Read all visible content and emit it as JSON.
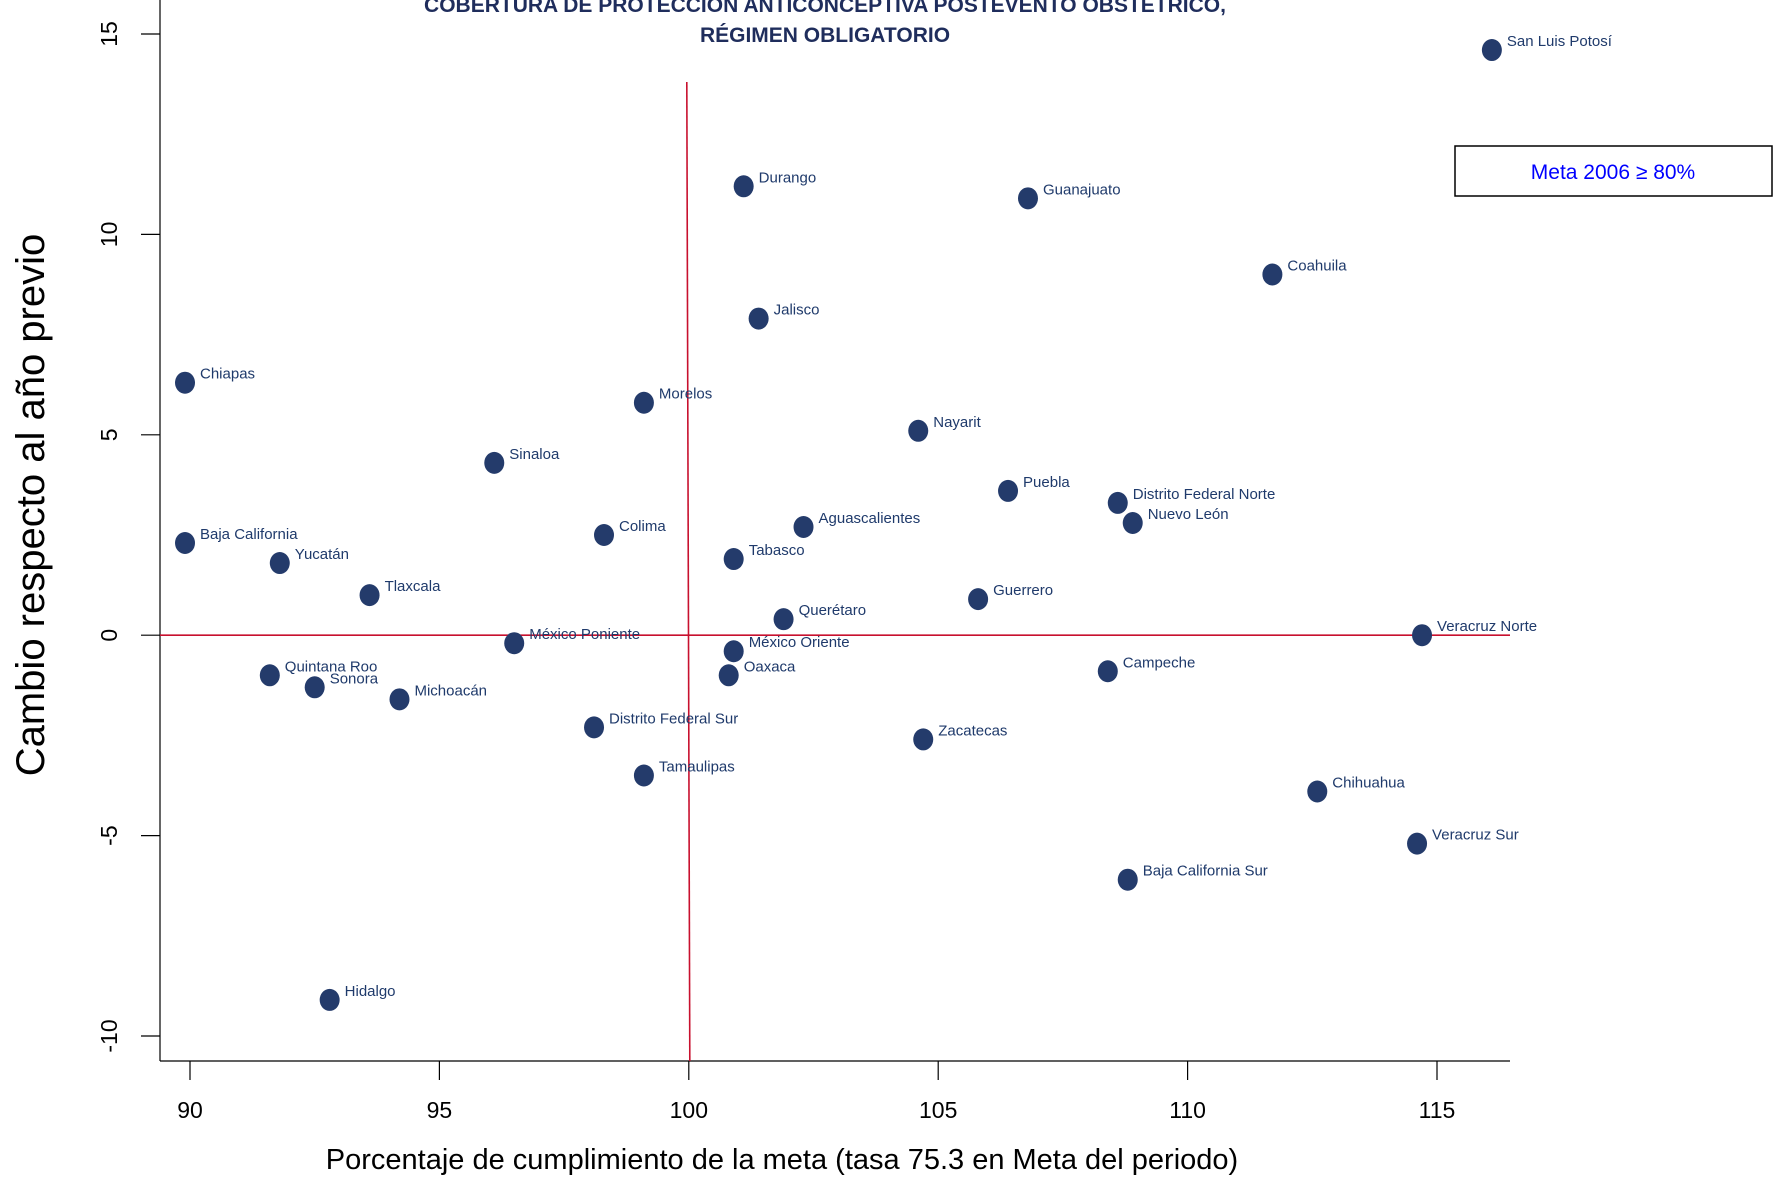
{
  "chart_data": {
    "type": "scatter",
    "title_line1": "COBERTURA DE PROTECCIÓN ANTICONCEPTIVA POSTEVENTO OBSTÉTRICO,",
    "title_line2": "RÉGIMEN OBLIGATORIO",
    "xlabel": "Porcentaje de cumplimiento de la  meta (tasa 75.3 en Meta del periodo)",
    "ylabel": "Cambio respecto al  año previo",
    "xlim": [
      89.5,
      116.6
    ],
    "ylim": [
      -10.7,
      15.6
    ],
    "xticks": [
      "90",
      "95",
      "100",
      "105",
      "110",
      "115"
    ],
    "yticks": [
      "-10",
      "-5",
      "0",
      "5",
      "10",
      "15"
    ],
    "reference_lines": {
      "x": 100,
      "y": 0,
      "color": "#c8102e"
    },
    "legend_text": "Meta 2006 ≥ 80%",
    "legend_color": "#0000ff",
    "marker_color": "#243b6b",
    "grid": false,
    "points": [
      {
        "label": "San Luis Potosí",
        "x": 116.1,
        "y": 14.6
      },
      {
        "label": "Durango",
        "x": 101.1,
        "y": 11.2
      },
      {
        "label": "Guanajuato",
        "x": 106.8,
        "y": 10.9
      },
      {
        "label": "Coahuila",
        "x": 111.7,
        "y": 9.0
      },
      {
        "label": "Jalisco",
        "x": 101.4,
        "y": 7.9
      },
      {
        "label": "Chiapas",
        "x": 89.9,
        "y": 6.3
      },
      {
        "label": "Morelos",
        "x": 99.1,
        "y": 5.8
      },
      {
        "label": "Nayarit",
        "x": 104.6,
        "y": 5.1
      },
      {
        "label": "Sinaloa",
        "x": 96.1,
        "y": 4.3
      },
      {
        "label": "Puebla",
        "x": 106.4,
        "y": 3.6
      },
      {
        "label": "Distrito Federal Norte",
        "x": 108.6,
        "y": 3.3
      },
      {
        "label": "Nuevo León",
        "x": 108.9,
        "y": 2.8
      },
      {
        "label": "Aguascalientes",
        "x": 102.3,
        "y": 2.7
      },
      {
        "label": "Colima",
        "x": 98.3,
        "y": 2.5
      },
      {
        "label": "Baja California",
        "x": 89.9,
        "y": 2.3
      },
      {
        "label": "Tabasco",
        "x": 100.9,
        "y": 1.9
      },
      {
        "label": "Yucatán",
        "x": 91.8,
        "y": 1.8
      },
      {
        "label": "Tlaxcala",
        "x": 93.6,
        "y": 1.0
      },
      {
        "label": "Guerrero",
        "x": 105.8,
        "y": 0.9
      },
      {
        "label": "Querétaro",
        "x": 101.9,
        "y": 0.4
      },
      {
        "label": "Veracruz Norte",
        "x": 114.7,
        "y": 0.0
      },
      {
        "label": "México Poniente",
        "x": 96.5,
        "y": -0.2
      },
      {
        "label": "México Oriente",
        "x": 100.9,
        "y": -0.4
      },
      {
        "label": "Campeche",
        "x": 108.4,
        "y": -0.9
      },
      {
        "label": "Quintana Roo",
        "x": 91.6,
        "y": -1.0
      },
      {
        "label": "Oaxaca",
        "x": 100.8,
        "y": -1.0
      },
      {
        "label": "Sonora",
        "x": 92.5,
        "y": -1.3
      },
      {
        "label": "Michoacán",
        "x": 94.2,
        "y": -1.6
      },
      {
        "label": "Distrito Federal Sur",
        "x": 98.1,
        "y": -2.3
      },
      {
        "label": "Zacatecas",
        "x": 104.7,
        "y": -2.6
      },
      {
        "label": "Tamaulipas",
        "x": 99.1,
        "y": -3.5
      },
      {
        "label": "Chihuahua",
        "x": 112.6,
        "y": -3.9
      },
      {
        "label": "Veracruz Sur",
        "x": 114.6,
        "y": -5.2
      },
      {
        "label": "Baja California Sur",
        "x": 108.8,
        "y": -6.1
      },
      {
        "label": "Hidalgo",
        "x": 92.8,
        "y": -9.1
      }
    ]
  }
}
